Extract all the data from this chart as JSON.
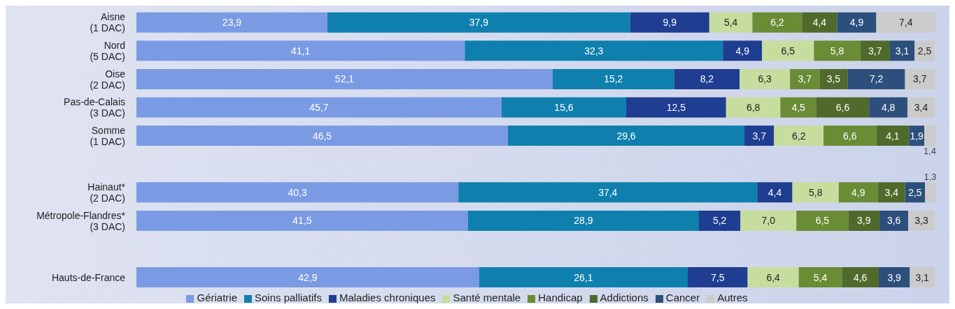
{
  "chart_data": {
    "type": "bar",
    "orientation": "horizontal",
    "stacked": true,
    "legend": "bottom",
    "grid": false,
    "categories": [
      "Aisne\n(1 DAC)",
      "Nord\n(5 DAC)",
      "Oise\n(2 DAC)",
      "Pas-de-Calais\n(3 DAC)",
      "Somme\n(1 DAC)",
      null,
      "Hainaut*\n(2 DAC)",
      "Métropole-Flandres*\n(3 DAC)",
      null,
      "Hauts-de-France"
    ],
    "series": [
      {
        "name": "Gériatrie",
        "color": "#7a9be3",
        "values": [
          23.9,
          41.1,
          52.1,
          45.7,
          46.5,
          null,
          40.3,
          41.5,
          null,
          42.9
        ],
        "value_labels": [
          "23,9",
          "41,1",
          "52,1",
          "45,7",
          "46,5",
          null,
          "40,3",
          "41,5",
          null,
          "42,9"
        ]
      },
      {
        "name": "Soins palliatifs",
        "color": "#0f80ad",
        "values": [
          37.9,
          32.3,
          15.2,
          15.6,
          29.6,
          null,
          37.4,
          28.9,
          null,
          26.1
        ],
        "value_labels": [
          "37,9",
          "32,3",
          "15,2",
          "15,6",
          "29,6",
          null,
          "37,4",
          "28,9",
          null,
          "26,1"
        ]
      },
      {
        "name": "Maladies chroniques",
        "color": "#1f3d91",
        "values": [
          9.9,
          4.9,
          8.2,
          12.5,
          3.7,
          null,
          4.4,
          5.2,
          null,
          7.5
        ],
        "value_labels": [
          "9,9",
          "4,9",
          "8,2",
          "12,5",
          "3,7",
          null,
          "4,4",
          "5,2",
          null,
          "7,5"
        ]
      },
      {
        "name": "Santé mentale",
        "color": "#c6dd9e",
        "values": [
          5.4,
          6.5,
          6.3,
          6.8,
          6.2,
          null,
          5.8,
          7.0,
          null,
          6.4
        ],
        "value_labels": [
          "5,4",
          "6,5",
          "6,3",
          "6,8",
          "6,2",
          null,
          "5,8",
          "7,0",
          null,
          "6,4"
        ]
      },
      {
        "name": "Handicap",
        "color": "#6a8c35",
        "values": [
          6.2,
          5.8,
          3.7,
          4.5,
          6.6,
          null,
          4.9,
          6.5,
          null,
          5.4
        ],
        "value_labels": [
          "6,2",
          "5,8",
          "3,7",
          "4,5",
          "6,6",
          null,
          "4,9",
          "6,5",
          null,
          "5,4"
        ]
      },
      {
        "name": "Addictions",
        "color": "#4f6a2a",
        "values": [
          4.4,
          3.7,
          3.5,
          6.6,
          4.1,
          null,
          3.4,
          3.9,
          null,
          4.6
        ],
        "value_labels": [
          "4,4",
          "3,7",
          "3,5",
          "6,6",
          "4,1",
          null,
          "3,4",
          "3,9",
          null,
          "4,6"
        ]
      },
      {
        "name": "Cancer",
        "color": "#2d4f7c",
        "values": [
          4.9,
          3.1,
          7.2,
          4.8,
          1.9,
          null,
          2.5,
          3.6,
          null,
          3.9
        ],
        "value_labels": [
          "4,9",
          "3,1",
          "7,2",
          "4,8",
          "1,9",
          null,
          "2,5",
          "3,6",
          null,
          "3,9"
        ]
      },
      {
        "name": "Autres",
        "color": "#cbcbcb",
        "values": [
          7.4,
          2.5,
          3.7,
          3.4,
          1.4,
          null,
          1.3,
          3.3,
          null,
          3.1
        ],
        "value_labels": [
          "7,4",
          "2,5",
          "3,7",
          "3,4",
          "1,4",
          null,
          "1,3",
          "3,3",
          null,
          "3,1"
        ]
      }
    ]
  }
}
